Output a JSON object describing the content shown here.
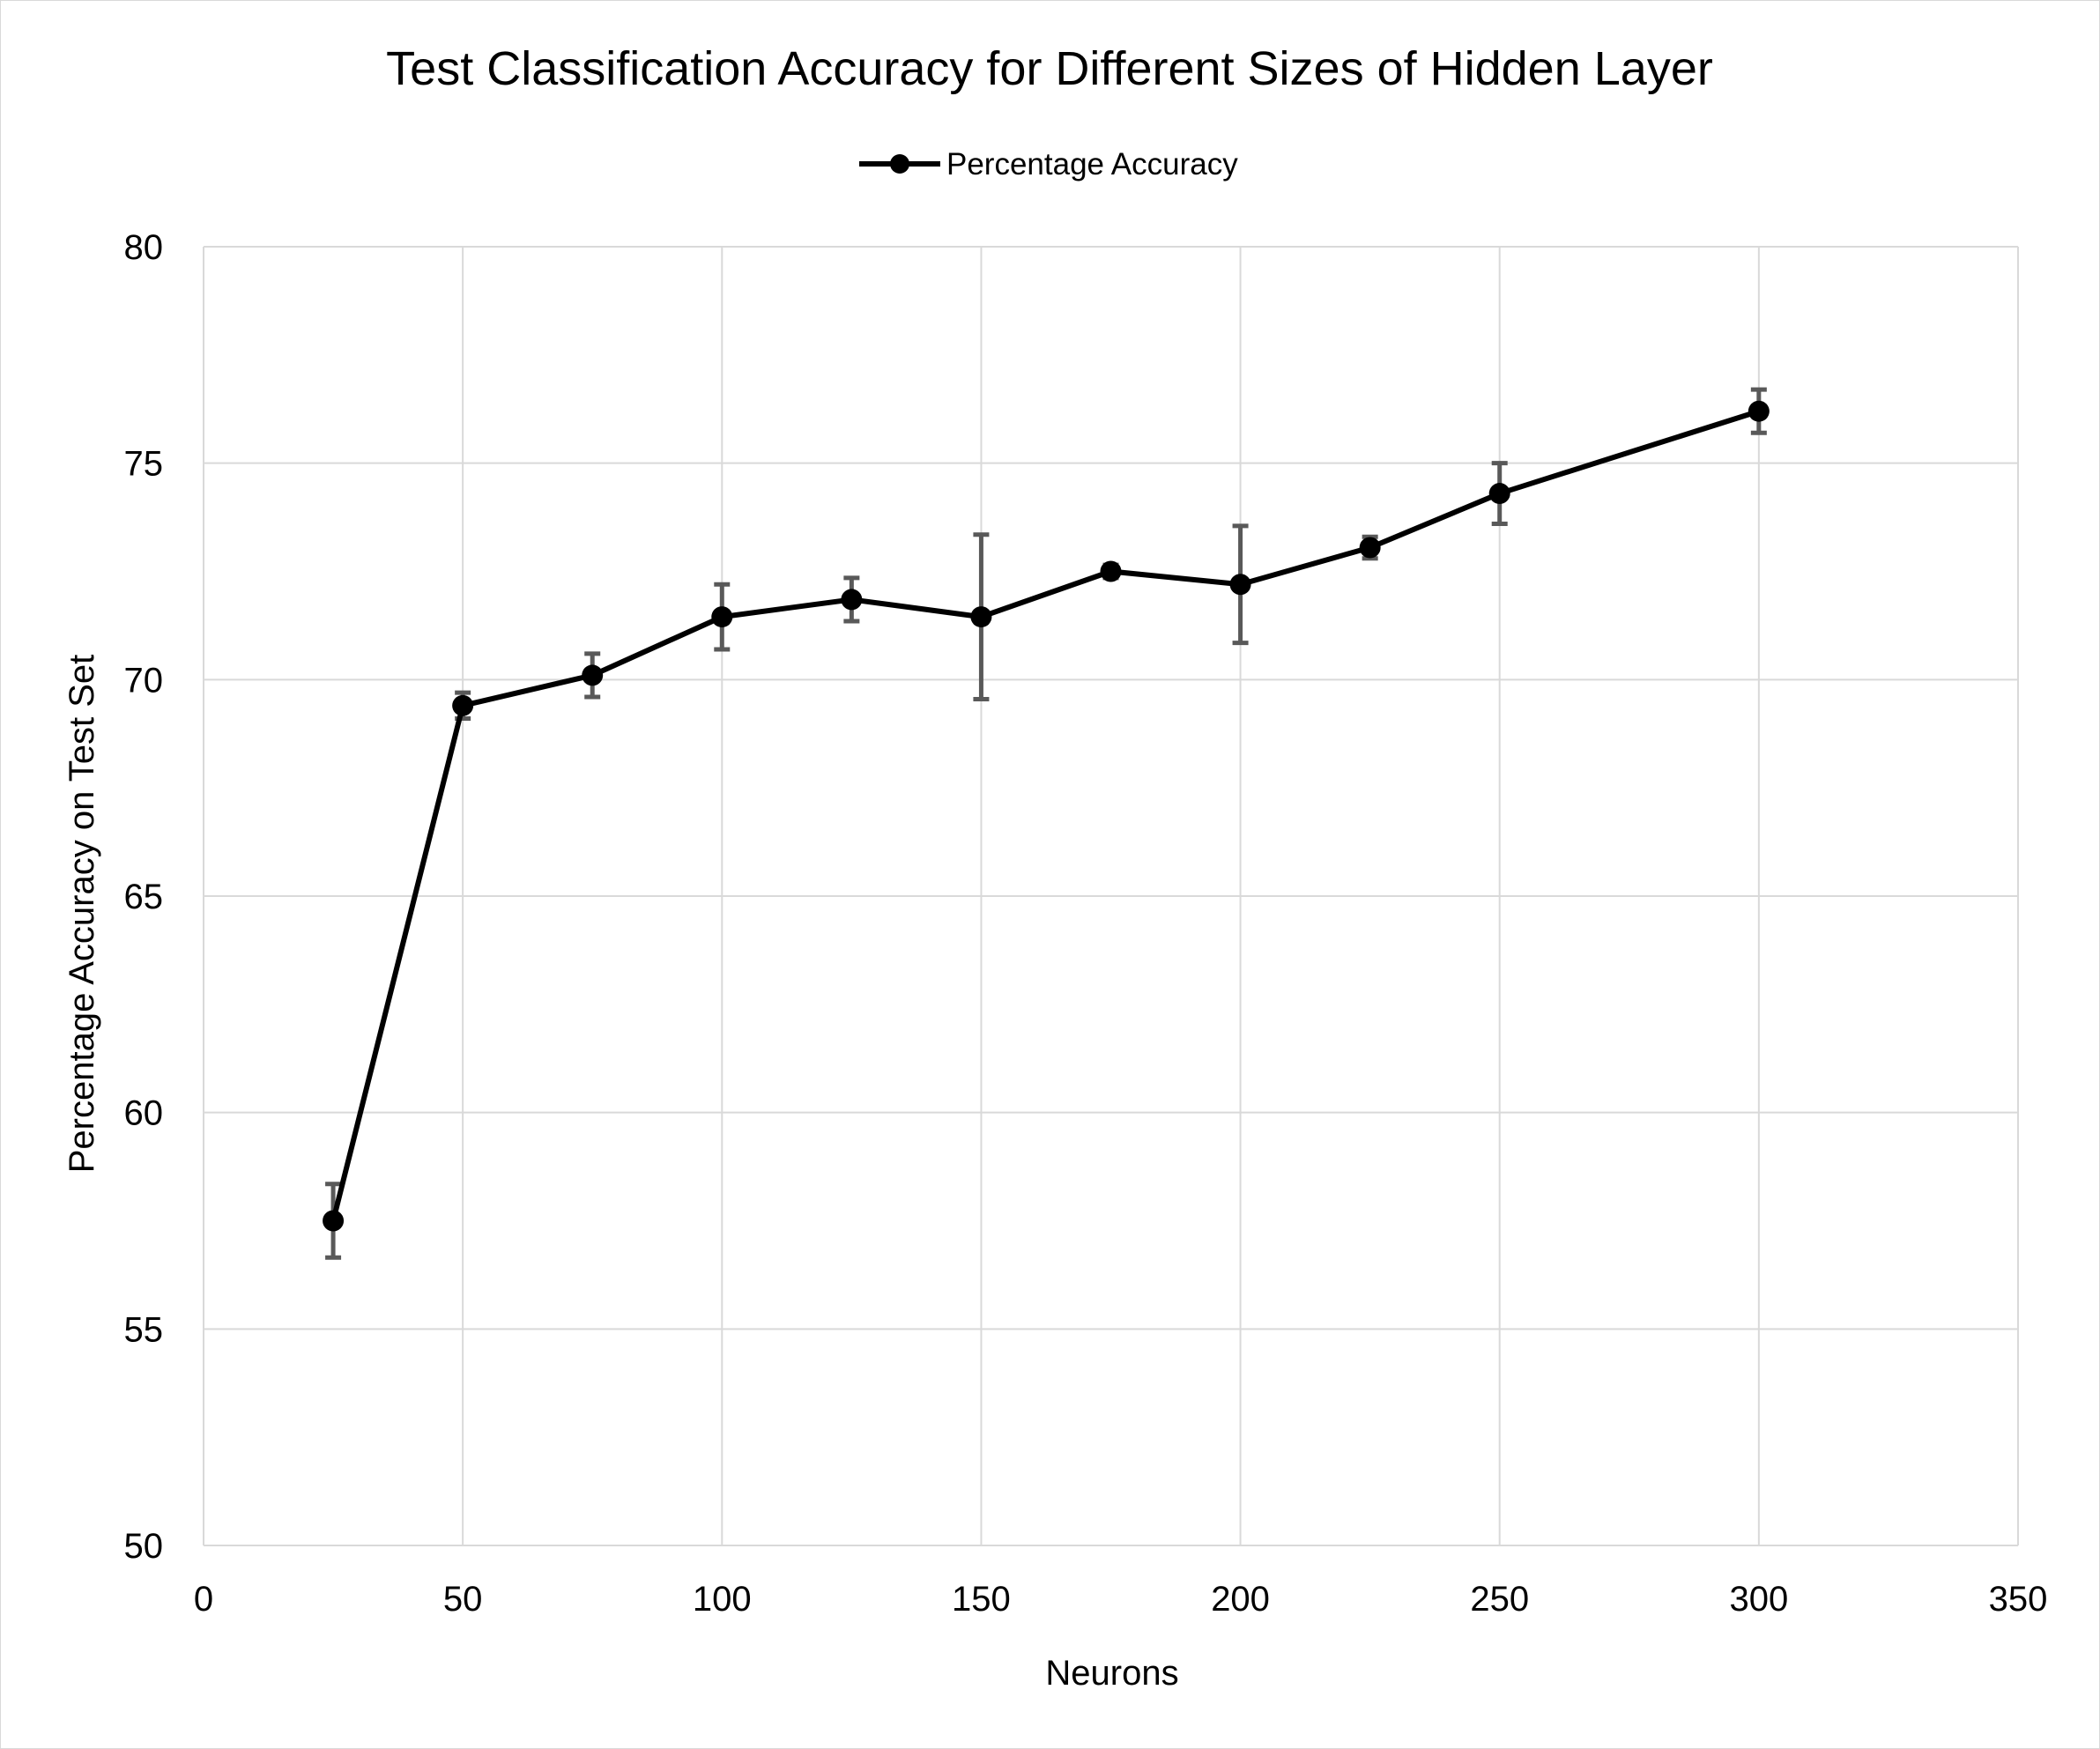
{
  "chart_data": {
    "type": "line",
    "title": "Test Classification Accuracy for Different Sizes of Hidden Layer",
    "xlabel": "Neurons",
    "ylabel": "Percentage Accuracy on Test Set",
    "xlim": [
      0,
      350
    ],
    "ylim": [
      50,
      80
    ],
    "xticks": [
      0,
      50,
      100,
      150,
      200,
      250,
      300,
      350
    ],
    "yticks": [
      50,
      55,
      60,
      65,
      70,
      75,
      80
    ],
    "grid": true,
    "legend_position": "top-center",
    "series": [
      {
        "name": "Percentage Accuracy",
        "color": "#000000",
        "error_bar_color": "#595959",
        "marker": "circle",
        "x": [
          25,
          50,
          75,
          100,
          125,
          150,
          175,
          200,
          225,
          250,
          300
        ],
        "y": [
          57.5,
          69.4,
          70.1,
          71.45,
          71.85,
          71.45,
          72.5,
          72.2,
          73.05,
          74.3,
          76.2
        ],
        "error": [
          0.85,
          0.3,
          0.5,
          0.75,
          0.5,
          1.9,
          0.15,
          1.35,
          0.25,
          0.7,
          0.5
        ]
      }
    ]
  }
}
